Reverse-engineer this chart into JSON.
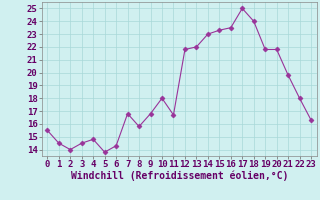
{
  "x": [
    0,
    1,
    2,
    3,
    4,
    5,
    6,
    7,
    8,
    9,
    10,
    11,
    12,
    13,
    14,
    15,
    16,
    17,
    18,
    19,
    20,
    21,
    22,
    23
  ],
  "y": [
    15.5,
    14.5,
    14.0,
    14.5,
    14.8,
    13.8,
    14.3,
    16.8,
    15.8,
    16.8,
    18.0,
    16.7,
    21.8,
    22.0,
    23.0,
    23.3,
    23.5,
    25.0,
    24.0,
    21.8,
    21.8,
    19.8,
    18.0,
    16.3
  ],
  "line_color": "#993399",
  "marker": "D",
  "marker_size": 2.5,
  "bg_color": "#d0f0f0",
  "grid_color": "#a8d8d8",
  "xlabel": "Windchill (Refroidissement éolien,°C)",
  "xlabel_fontsize": 7,
  "tick_fontsize": 6.5,
  "ylim": [
    13.5,
    25.5
  ],
  "xlim": [
    -0.5,
    23.5
  ],
  "yticks": [
    14,
    15,
    16,
    17,
    18,
    19,
    20,
    21,
    22,
    23,
    24,
    25
  ],
  "xticks": [
    0,
    1,
    2,
    3,
    4,
    5,
    6,
    7,
    8,
    9,
    10,
    11,
    12,
    13,
    14,
    15,
    16,
    17,
    18,
    19,
    20,
    21,
    22,
    23
  ]
}
